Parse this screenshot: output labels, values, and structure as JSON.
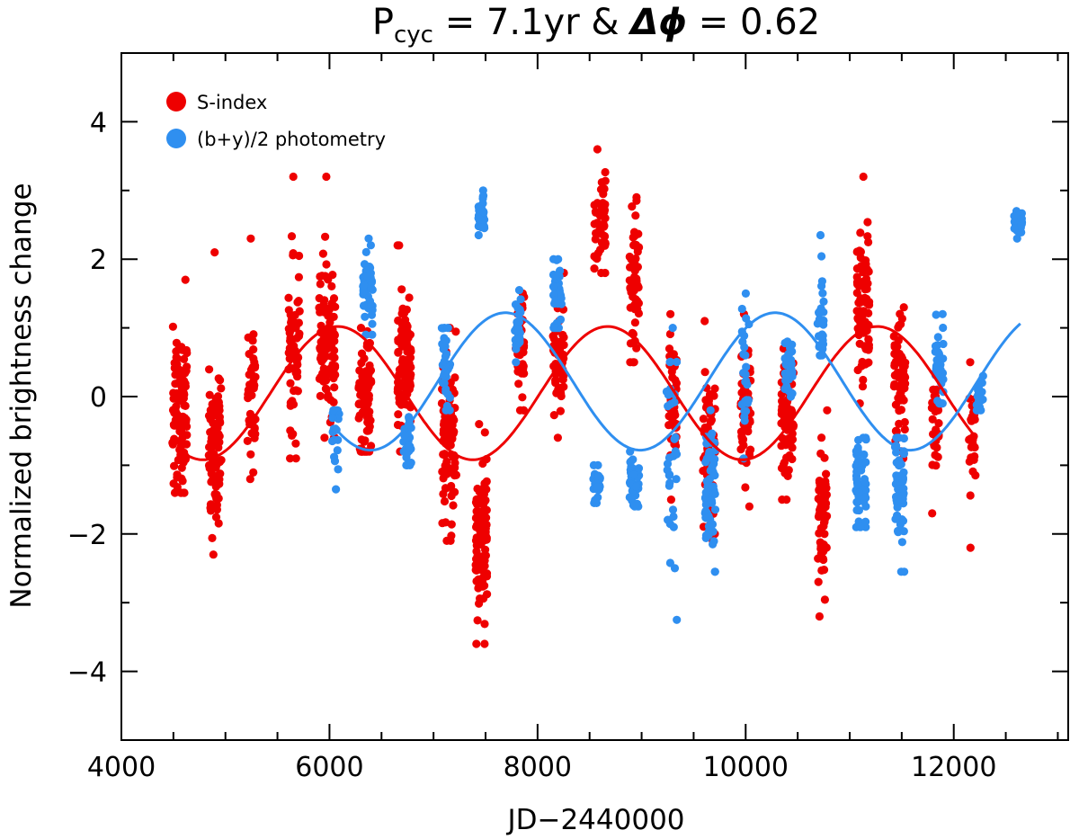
{
  "chart_data": {
    "type": "scatter",
    "title": {
      "prefix": "P",
      "subscript": "cyc",
      "middle": " = 7.1yr & ",
      "delta": "Δϕ",
      "suffix": " = 0.62"
    },
    "xlabel": "JD−2440000",
    "ylabel": "Normalized brightness change",
    "xlim": [
      4000,
      13100
    ],
    "ylim": [
      -5,
      5
    ],
    "xticks": [
      4000,
      6000,
      8000,
      10000,
      12000
    ],
    "xtick_labels": [
      "4000",
      "6000",
      "8000",
      "10000",
      "12000"
    ],
    "yticks": [
      -4,
      -2,
      0,
      2,
      4
    ],
    "ytick_labels": [
      "−4",
      "−2",
      "0",
      "2",
      "4"
    ],
    "legend": {
      "position": "top-left",
      "entries": [
        {
          "label": "S-index",
          "color": "#ee0000"
        },
        {
          "label": "(b+y)/2 photometry",
          "color": "#2f8ff0"
        }
      ]
    },
    "series": [
      {
        "name": "S-index",
        "color": "#ee0000",
        "clusters": [
          {
            "x": 4560,
            "w": 140,
            "mean": -0.2,
            "spread": 0.6,
            "min": -1.4,
            "max": 1.7,
            "n": 110
          },
          {
            "x": 4900,
            "w": 120,
            "mean": -0.8,
            "spread": 0.55,
            "min": -2.3,
            "max": 2.1,
            "n": 80
          },
          {
            "x": 5250,
            "w": 80,
            "mean": 0.2,
            "spread": 0.6,
            "min": -1.2,
            "max": 2.3,
            "n": 40
          },
          {
            "x": 5660,
            "w": 110,
            "mean": 0.7,
            "spread": 0.6,
            "min": -0.9,
            "max": 3.2,
            "n": 60
          },
          {
            "x": 5980,
            "w": 160,
            "mean": 0.8,
            "spread": 0.55,
            "min": -0.6,
            "max": 3.2,
            "n": 100
          },
          {
            "x": 6340,
            "w": 120,
            "mean": -0.1,
            "spread": 0.45,
            "min": -0.8,
            "max": 1.0,
            "n": 90
          },
          {
            "x": 6720,
            "w": 130,
            "mean": 0.4,
            "spread": 0.55,
            "min": -0.8,
            "max": 2.2,
            "n": 100
          },
          {
            "x": 7150,
            "w": 140,
            "mean": -0.5,
            "spread": 0.6,
            "min": -2.1,
            "max": 1.0,
            "n": 90
          },
          {
            "x": 7460,
            "w": 110,
            "mean": -2.1,
            "spread": 0.5,
            "min": -3.6,
            "max": -0.4,
            "n": 100
          },
          {
            "x": 7830,
            "w": 80,
            "mean": 0.6,
            "spread": 0.45,
            "min": -0.2,
            "max": 1.5,
            "n": 40
          },
          {
            "x": 8200,
            "w": 110,
            "mean": 0.5,
            "spread": 0.45,
            "min": -0.6,
            "max": 1.8,
            "n": 50
          },
          {
            "x": 8600,
            "w": 110,
            "mean": 2.6,
            "spread": 0.45,
            "min": 1.8,
            "max": 3.6,
            "n": 45
          },
          {
            "x": 8930,
            "w": 90,
            "mean": 1.7,
            "spread": 0.5,
            "min": 0.5,
            "max": 2.9,
            "n": 55
          },
          {
            "x": 9300,
            "w": 80,
            "mean": -0.1,
            "spread": 0.55,
            "min": -1.5,
            "max": 1.2,
            "n": 45
          },
          {
            "x": 9650,
            "w": 120,
            "mean": -0.8,
            "spread": 0.6,
            "min": -2.1,
            "max": 1.1,
            "n": 60
          },
          {
            "x": 10000,
            "w": 100,
            "mean": -0.2,
            "spread": 0.5,
            "min": -1.6,
            "max": 1.2,
            "n": 50
          },
          {
            "x": 10400,
            "w": 120,
            "mean": -0.3,
            "spread": 0.45,
            "min": -1.5,
            "max": 0.7,
            "n": 80
          },
          {
            "x": 10740,
            "w": 90,
            "mean": -1.7,
            "spread": 0.5,
            "min": -3.2,
            "max": -0.2,
            "n": 60
          },
          {
            "x": 11130,
            "w": 120,
            "mean": 1.3,
            "spread": 0.5,
            "min": -0.1,
            "max": 3.2,
            "n": 90
          },
          {
            "x": 11480,
            "w": 110,
            "mean": 0.2,
            "spread": 0.5,
            "min": -0.9,
            "max": 1.3,
            "n": 60
          },
          {
            "x": 11830,
            "w": 80,
            "mean": -0.3,
            "spread": 0.35,
            "min": -1.7,
            "max": 0.1,
            "n": 30
          },
          {
            "x": 12180,
            "w": 70,
            "mean": -0.7,
            "spread": 0.4,
            "min": -2.2,
            "max": 0.5,
            "n": 25
          }
        ],
        "fit": {
          "amplitude": 0.97,
          "offset": 0.05,
          "period_days": 2593,
          "peak_x": 6080,
          "x_range": [
            4560,
            12200
          ]
        }
      },
      {
        "name": "(b+y)/2 photometry",
        "color": "#2f8ff0",
        "clusters": [
          {
            "x": 6060,
            "w": 70,
            "mean": -0.6,
            "spread": 0.3,
            "min": -1.35,
            "max": -0.2,
            "n": 20
          },
          {
            "x": 6370,
            "w": 100,
            "mean": 1.6,
            "spread": 0.25,
            "min": 0.9,
            "max": 2.3,
            "n": 50
          },
          {
            "x": 6750,
            "w": 80,
            "mean": -0.7,
            "spread": 0.2,
            "min": -1.0,
            "max": -0.3,
            "n": 30
          },
          {
            "x": 7120,
            "w": 80,
            "mean": 0.4,
            "spread": 0.3,
            "min": -0.2,
            "max": 1.0,
            "n": 30
          },
          {
            "x": 7460,
            "w": 60,
            "mean": 2.6,
            "spread": 0.12,
            "min": 2.35,
            "max": 3.0,
            "n": 40
          },
          {
            "x": 7810,
            "w": 60,
            "mean": 1.0,
            "spread": 0.25,
            "min": 0.5,
            "max": 1.55,
            "n": 25
          },
          {
            "x": 8190,
            "w": 80,
            "mean": 1.5,
            "spread": 0.25,
            "min": 1.0,
            "max": 2.0,
            "n": 35
          },
          {
            "x": 8570,
            "w": 70,
            "mean": -1.3,
            "spread": 0.15,
            "min": -1.55,
            "max": -1.0,
            "n": 25
          },
          {
            "x": 8930,
            "w": 90,
            "mean": -1.2,
            "spread": 0.18,
            "min": -1.6,
            "max": -0.8,
            "n": 40
          },
          {
            "x": 9290,
            "w": 100,
            "mean": -0.8,
            "spread": 0.7,
            "min": -3.25,
            "max": 1.0,
            "n": 30
          },
          {
            "x": 9660,
            "w": 100,
            "mean": -1.4,
            "spread": 0.5,
            "min": -2.55,
            "max": -0.2,
            "n": 60
          },
          {
            "x": 10000,
            "w": 70,
            "mean": 0.3,
            "spread": 0.5,
            "min": -0.9,
            "max": 1.5,
            "n": 25
          },
          {
            "x": 10410,
            "w": 80,
            "mean": 0.4,
            "spread": 0.2,
            "min": 0.0,
            "max": 0.8,
            "n": 30
          },
          {
            "x": 10720,
            "w": 60,
            "mean": 1.2,
            "spread": 0.4,
            "min": 0.6,
            "max": 2.35,
            "n": 25
          },
          {
            "x": 11110,
            "w": 100,
            "mean": -1.3,
            "spread": 0.3,
            "min": -1.9,
            "max": -0.6,
            "n": 50
          },
          {
            "x": 11480,
            "w": 90,
            "mean": -1.4,
            "spread": 0.4,
            "min": -2.55,
            "max": -0.6,
            "n": 50
          },
          {
            "x": 11860,
            "w": 80,
            "mean": 0.5,
            "spread": 0.3,
            "min": -0.1,
            "max": 1.2,
            "n": 35
          },
          {
            "x": 12250,
            "w": 70,
            "mean": 0.0,
            "spread": 0.12,
            "min": -0.2,
            "max": 0.3,
            "n": 20
          },
          {
            "x": 12620,
            "w": 90,
            "mean": 2.5,
            "spread": 0.08,
            "min": 2.3,
            "max": 2.7,
            "n": 35
          }
        ],
        "fit": {
          "amplitude": 1.0,
          "offset": 0.22,
          "period_days": 2593,
          "peak_x": 7690,
          "x_range": [
            6080,
            12640
          ]
        }
      }
    ]
  }
}
